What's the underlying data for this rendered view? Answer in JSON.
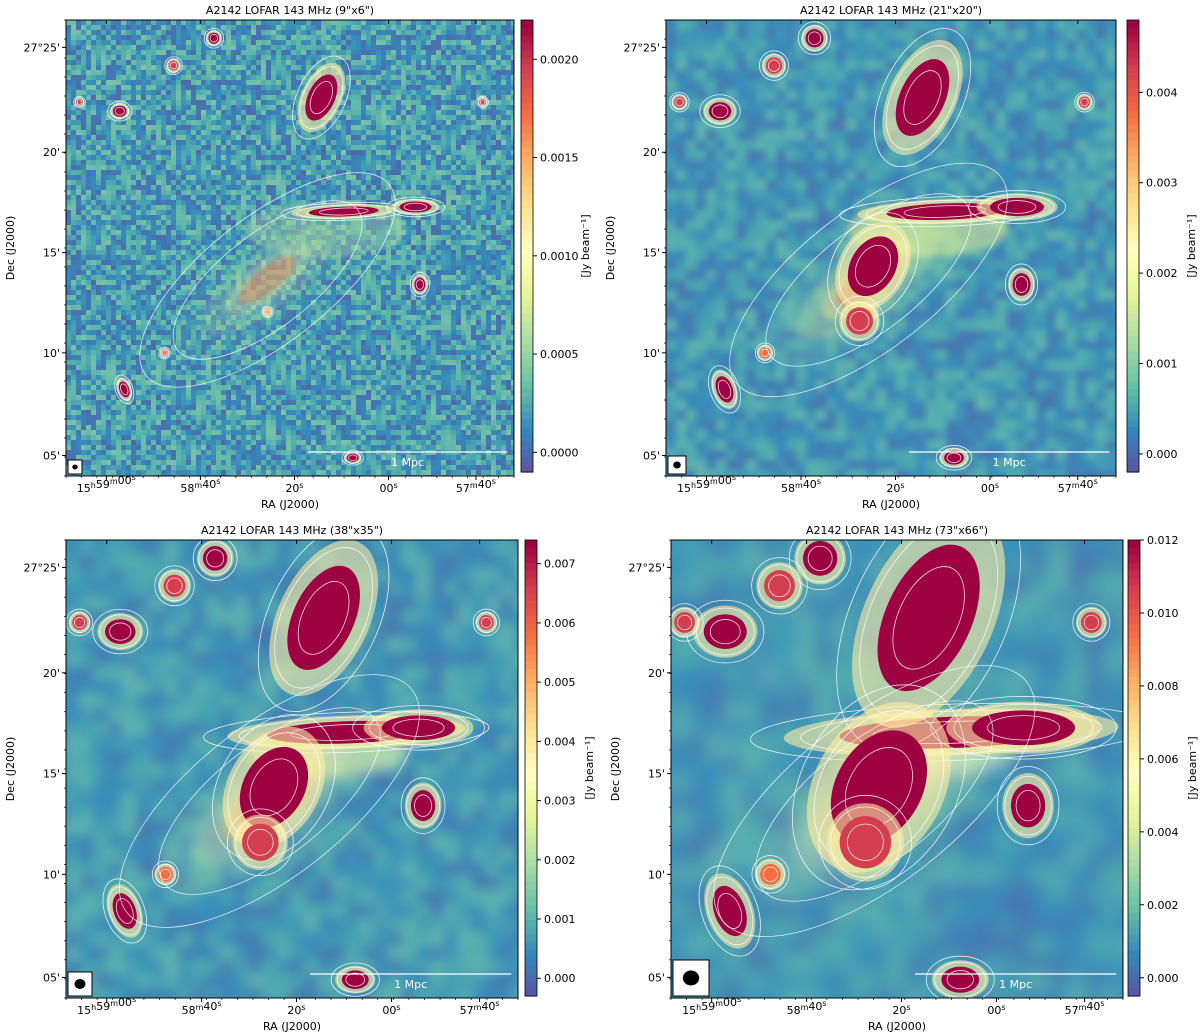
{
  "figure": {
    "panels": [
      {
        "id": "p1",
        "title": "A2142 LOFAR 143 MHz (9\"x6\")",
        "resolution": "high",
        "beam_size": "small"
      },
      {
        "id": "p2",
        "title": "A2142 LOFAR 143 MHz (21\"x20\")",
        "resolution": "medium",
        "beam_size": "medium"
      },
      {
        "id": "p3",
        "title": "A2142 LOFAR 143 MHz (38\"x35\")",
        "resolution": "medium-low",
        "beam_size": "large"
      },
      {
        "id": "p4",
        "title": "A2142 LOFAR 143 MHz (73\"x66\")",
        "resolution": "low",
        "beam_size": "xlarge"
      }
    ]
  },
  "chart_data": [
    {
      "type": "heatmap",
      "title": "A2142 LOFAR 143 MHz (9\"x6\")",
      "xlabel": "RA (J2000)",
      "ylabel": "Dec (J2000)",
      "colorbar_label": "[Jy beam⁻¹]",
      "colormap": "Spectral_r",
      "x_ticks": [
        "15h59m00s",
        "58m40s",
        "20s",
        "00s",
        "57m40s"
      ],
      "y_ticks": [
        "27°25'",
        "20'",
        "15'",
        "10'",
        "05'"
      ],
      "colorbar_ticks": [
        "0.0000",
        "0.0005",
        "0.0010",
        "0.0015",
        "0.0020"
      ],
      "colorbar_range": [
        -0.0001,
        0.0022
      ],
      "scale_bar": "1 Mpc",
      "contours": true,
      "grid": false
    },
    {
      "type": "heatmap",
      "title": "A2142 LOFAR 143 MHz (21\"x20\")",
      "xlabel": "RA (J2000)",
      "ylabel": "Dec (J2000)",
      "colorbar_label": "[Jy beam⁻¹]",
      "colormap": "Spectral_r",
      "x_ticks": [
        "15h59m00s",
        "58m40s",
        "20s",
        "00s",
        "57m40s"
      ],
      "y_ticks": [
        "27°25'",
        "20'",
        "15'",
        "10'",
        "05'"
      ],
      "colorbar_ticks": [
        "0.000",
        "0.001",
        "0.002",
        "0.003",
        "0.004"
      ],
      "colorbar_range": [
        -0.0002,
        0.0048
      ],
      "scale_bar": "1 Mpc",
      "contours": true,
      "grid": false
    },
    {
      "type": "heatmap",
      "title": "A2142 LOFAR 143 MHz (38\"x35\")",
      "xlabel": "RA (J2000)",
      "ylabel": "Dec (J2000)",
      "colorbar_label": "[Jy beam⁻¹]",
      "colormap": "Spectral_r",
      "x_ticks": [
        "15h59m00s",
        "58m40s",
        "20s",
        "00s",
        "57m40s"
      ],
      "y_ticks": [
        "27°25'",
        "20'",
        "15'",
        "10'",
        "05'"
      ],
      "colorbar_ticks": [
        "0.000",
        "0.001",
        "0.002",
        "0.003",
        "0.004",
        "0.005",
        "0.006",
        "0.007"
      ],
      "colorbar_range": [
        -0.0003,
        0.0074
      ],
      "scale_bar": "1 Mpc",
      "contours": true,
      "grid": false
    },
    {
      "type": "heatmap",
      "title": "A2142 LOFAR 143 MHz (73\"x66\")",
      "xlabel": "RA (J2000)",
      "ylabel": "Dec (J2000)",
      "colorbar_label": "[Jy beam⁻¹]",
      "colormap": "Spectral_r",
      "x_ticks": [
        "15h59m00s",
        "58m40s",
        "20s",
        "00s",
        "57m40s"
      ],
      "y_ticks": [
        "27°25'",
        "20'",
        "15'",
        "10'",
        "05'"
      ],
      "colorbar_ticks": [
        "0.000",
        "0.002",
        "0.004",
        "0.006",
        "0.008",
        "0.010",
        "0.012"
      ],
      "colorbar_range": [
        -0.0005,
        0.012
      ],
      "scale_bar": "1 Mpc",
      "contours": true,
      "grid": false
    }
  ]
}
